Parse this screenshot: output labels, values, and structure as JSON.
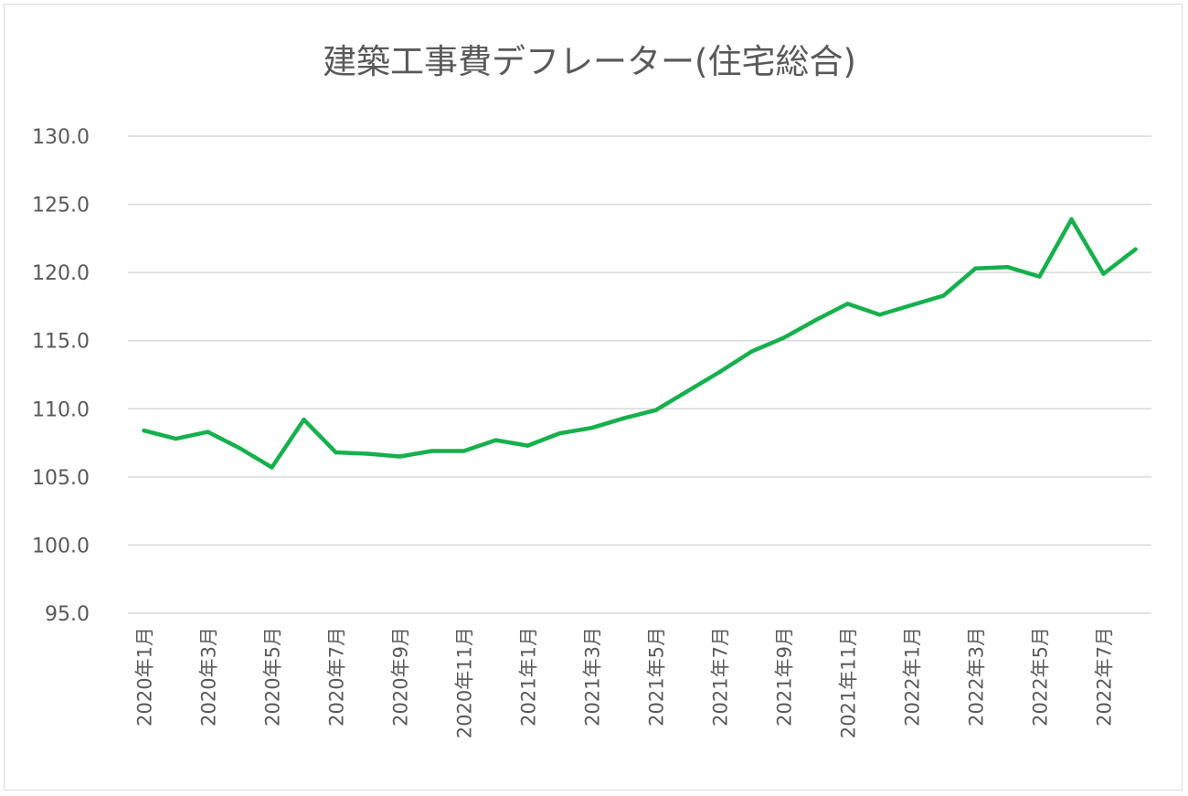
{
  "chart_data": {
    "type": "line",
    "title": "建築工事費デフレーター(住宅総合)",
    "xlabel": "",
    "ylabel": "",
    "ylim": [
      95.0,
      130.0
    ],
    "yticks": [
      "130.0",
      "125.0",
      "120.0",
      "115.0",
      "110.0",
      "105.0",
      "100.0",
      "95.0"
    ],
    "grid": true,
    "legend": "none",
    "color": "#16b04c",
    "categories": [
      "2020年1月",
      "2020年2月",
      "2020年3月",
      "2020年4月",
      "2020年5月",
      "2020年6月",
      "2020年7月",
      "2020年8月",
      "2020年9月",
      "2020年10月",
      "2020年11月",
      "2020年12月",
      "2021年1月",
      "2021年2月",
      "2021年3月",
      "2021年4月",
      "2021年5月",
      "2021年6月",
      "2021年7月",
      "2021年8月",
      "2021年9月",
      "2021年10月",
      "2021年11月",
      "2021年12月",
      "2022年1月",
      "2022年2月",
      "2022年3月",
      "2022年4月",
      "2022年5月",
      "2022年6月",
      "2022年7月",
      "2022年8月"
    ],
    "visible_tick_labels": [
      "2020年1月",
      "2020年3月",
      "2020年5月",
      "2020年7月",
      "2020年9月",
      "2020年11月",
      "2021年1月",
      "2021年3月",
      "2021年5月",
      "2021年7月",
      "2021年9月",
      "2021年11月",
      "2022年1月",
      "2022年3月",
      "2022年5月",
      "2022年7月"
    ],
    "values": [
      108.4,
      107.8,
      108.3,
      107.1,
      105.7,
      109.2,
      106.8,
      106.7,
      106.5,
      106.9,
      106.9,
      107.7,
      107.3,
      108.2,
      108.6,
      109.3,
      109.9,
      111.3,
      112.7,
      114.2,
      115.2,
      116.5,
      117.7,
      116.9,
      117.6,
      118.3,
      120.3,
      120.4,
      119.7,
      123.9,
      119.9,
      121.7
    ]
  }
}
